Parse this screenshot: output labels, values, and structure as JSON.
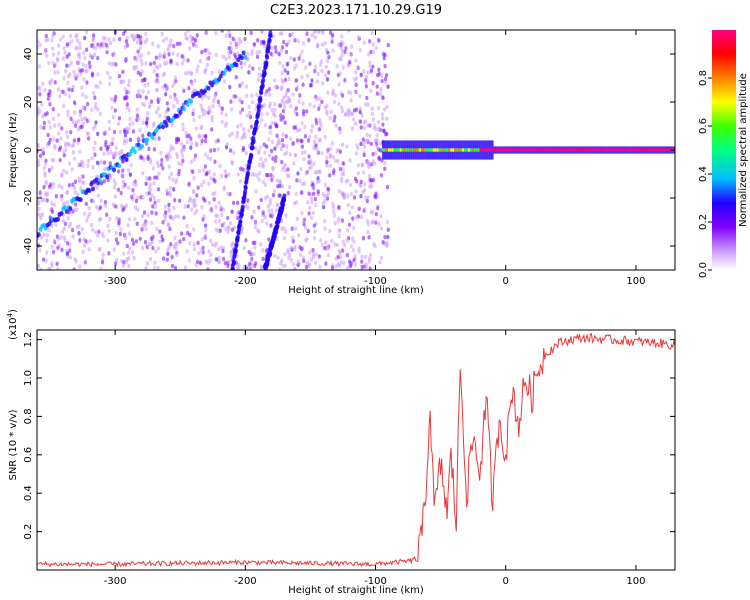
{
  "title": "C2E3.2023.171.10.29.G19",
  "colors": {
    "snr_line": "#e8393a",
    "axis": "#000000",
    "background": "#ffffff"
  },
  "colorbar": {
    "label": "Normalized spectral amplitude",
    "range": [
      0.0,
      1.0
    ],
    "ticks": [
      0.0,
      0.2,
      0.4,
      0.6,
      0.8
    ],
    "tick_labels": [
      "0.0",
      "0.2",
      "0.4",
      "0.6",
      "0.8"
    ],
    "colormap": [
      "#ffffff",
      "#cc99ff",
      "#7f00ff",
      "#2200ff",
      "#00bfff",
      "#00ff80",
      "#40ff00",
      "#ffff00",
      "#ff8000",
      "#ff0000",
      "#ff0080"
    ]
  },
  "chart_data": [
    {
      "type": "heatmap",
      "xlabel": "Height of straight line (km)",
      "ylabel": "Frequency (Hz)",
      "xlim": [
        -360,
        130
      ],
      "ylim": [
        -50,
        50
      ],
      "x_ticks": [
        -300,
        -200,
        -100,
        0,
        100
      ],
      "x_tick_labels": [
        "-300",
        "-200",
        "-100",
        "0",
        "100"
      ],
      "y_ticks": [
        -40,
        -20,
        0,
        20,
        40
      ],
      "y_tick_labels": [
        "-40",
        "-20",
        "0",
        "20",
        "40"
      ],
      "noise_region_x": [
        -360,
        -90
      ],
      "features": [
        {
          "name": "diagonal-streak-1",
          "x": [
            -360,
            -200
          ],
          "y": [
            -35,
            40
          ],
          "amplitude": 0.35
        },
        {
          "name": "steep-streak-1",
          "x": [
            -210,
            -180
          ],
          "y": [
            -50,
            50
          ],
          "amplitude": 0.3
        },
        {
          "name": "steep-streak-2",
          "x": [
            -185,
            -170
          ],
          "y": [
            -50,
            -20
          ],
          "amplitude": 0.3
        },
        {
          "name": "carrier-band",
          "x": [
            -95,
            130
          ],
          "y": [
            0,
            0
          ],
          "amplitude": 1.0
        }
      ]
    },
    {
      "type": "line",
      "xlabel": "Height of straight line (km)",
      "ylabel": "SNR (10 * v/v)",
      "y_scale_label": "(x10",
      "y_scale_exponent": "4",
      "y_scale_suffix": ")",
      "xlim": [
        -360,
        130
      ],
      "ylim": [
        0,
        1.25
      ],
      "x_ticks": [
        -300,
        -200,
        -100,
        0,
        100
      ],
      "x_tick_labels": [
        "-300",
        "-200",
        "-100",
        "0",
        "100"
      ],
      "y_ticks": [
        0.2,
        0.4,
        0.6,
        0.8,
        1.0,
        1.2
      ],
      "y_tick_labels": [
        "0.2",
        "0.4",
        "0.6",
        "0.8",
        "1.0",
        "1.2"
      ],
      "series": [
        {
          "x": [
            -360,
            -300,
            -200,
            -100,
            -70,
            -65,
            -62,
            -58,
            -55,
            -50,
            -45,
            -42,
            -38,
            -35,
            -30,
            -25,
            -20,
            -15,
            -10,
            -5,
            0,
            5,
            10,
            15,
            20,
            25,
            30,
            40,
            50,
            60,
            80,
            100,
            120,
            130
          ],
          "y": [
            0.03,
            0.03,
            0.04,
            0.03,
            0.05,
            0.15,
            0.35,
            0.85,
            0.3,
            0.55,
            0.3,
            0.6,
            0.25,
            1.08,
            0.4,
            0.7,
            0.5,
            0.9,
            0.35,
            0.8,
            0.6,
            0.95,
            0.75,
            1.0,
            0.9,
            1.05,
            1.12,
            1.18,
            1.2,
            1.21,
            1.2,
            1.19,
            1.18,
            1.17
          ]
        }
      ]
    }
  ]
}
